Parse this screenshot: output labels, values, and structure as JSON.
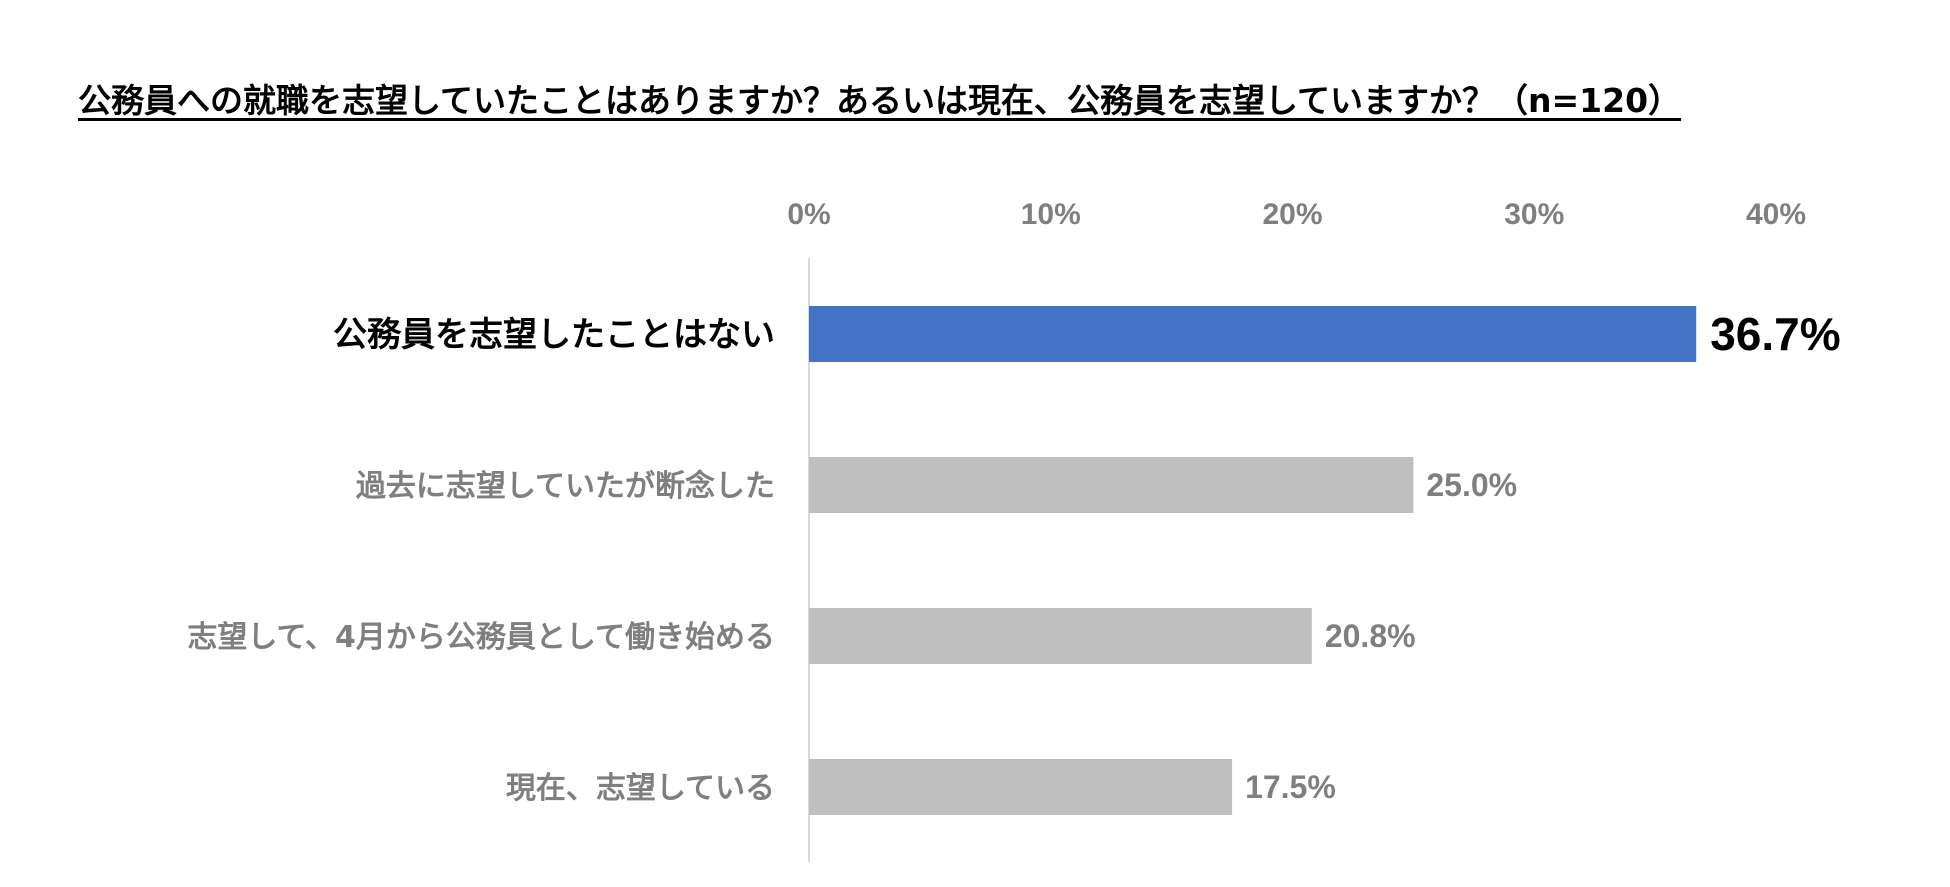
{
  "chart_data": {
    "type": "bar",
    "orientation": "horizontal",
    "title": "公務員への就職を志望していたことはありますか？あるいは現在、公務員を志望していますか？（n=120）",
    "categories": [
      "公務員を志望したことはない",
      "過去に志望していたが断念した",
      "志望して、4月から公務員として働き始める",
      "現在、志望している"
    ],
    "values": [
      36.7,
      25.0,
      20.8,
      17.5
    ],
    "value_labels": [
      "36.7%",
      "25.0%",
      "20.8%",
      "17.5%"
    ],
    "highlight_index": 0,
    "xlim": [
      0,
      40
    ],
    "ticks": [
      0,
      10,
      20,
      30,
      40
    ],
    "tick_labels": [
      "0%",
      "10%",
      "20%",
      "30%",
      "40%"
    ],
    "tick_position": "top",
    "grid": false,
    "legend": "none",
    "colors": {
      "highlight_bar": "#4472C4",
      "bar": "#BFBFBF",
      "highlight_text": "#000000",
      "muted_text": "#7F7F7F",
      "axis_line": "#D9D9D9"
    }
  }
}
